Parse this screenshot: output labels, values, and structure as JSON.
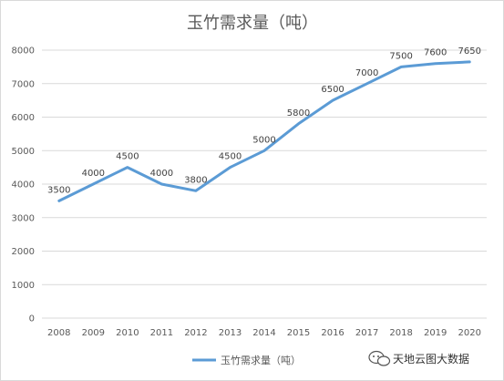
{
  "chart_data": {
    "type": "line",
    "title": "玉竹需求量（吨）",
    "xlabel": "",
    "ylabel": "",
    "categories": [
      "2008",
      "2009",
      "2010",
      "2011",
      "2012",
      "2013",
      "2014",
      "2015",
      "2016",
      "2017",
      "2018",
      "2019",
      "2020"
    ],
    "series": [
      {
        "name": "玉竹需求量（吨）",
        "values": [
          3500,
          4000,
          4500,
          4000,
          3800,
          4500,
          5000,
          5800,
          6500,
          7000,
          7500,
          7600,
          7650
        ],
        "color": "#5b9bd5"
      }
    ],
    "ylim": [
      0,
      8000
    ],
    "yticks": [
      0,
      1000,
      2000,
      3000,
      4000,
      5000,
      6000,
      7000,
      8000
    ],
    "grid": true,
    "legend": "bottom"
  },
  "watermark": {
    "text": "天地云图大数据",
    "icon": "wechat-icon"
  }
}
